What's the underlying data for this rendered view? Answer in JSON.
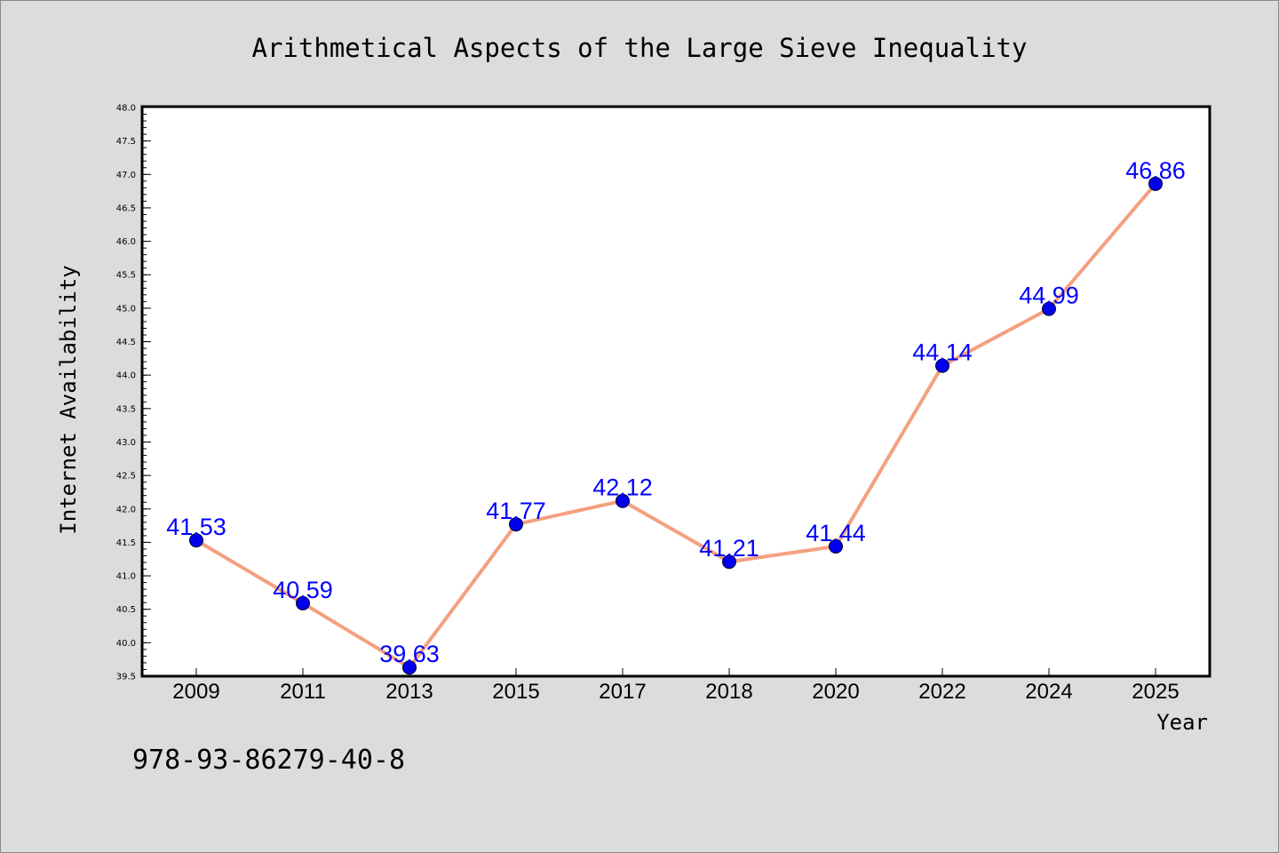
{
  "chart_data": {
    "type": "line",
    "title": "Arithmetical Aspects of the Large Sieve Inequality",
    "xlabel": "Year",
    "ylabel": "Internet Availability",
    "categories": [
      "2009",
      "2011",
      "2013",
      "2015",
      "2017",
      "2018",
      "2020",
      "2022",
      "2024",
      "2025"
    ],
    "series": [
      {
        "values": [
          41.53,
          40.59,
          39.63,
          41.77,
          42.12,
          41.21,
          41.44,
          44.14,
          44.99,
          46.86
        ],
        "labels": [
          "41.53",
          "40.59",
          "39.63",
          "41.77",
          "42.12",
          "41.21",
          "41.44",
          "44.14",
          "44.99",
          "46.86"
        ]
      }
    ],
    "ylim": [
      39.5,
      48.0
    ],
    "yticks": [
      "39.5",
      "40.0",
      "40.5",
      "41.0",
      "41.5",
      "42.0",
      "42.5",
      "43.0",
      "43.5",
      "44.0",
      "44.5",
      "45.0",
      "45.5",
      "46.0",
      "46.5",
      "47.0",
      "47.5",
      "48.0"
    ],
    "grid": false,
    "line_color": "#f4a07f",
    "marker_color": "#0000ee",
    "label_color": "#0000ff",
    "background": "#ffffff",
    "page_background": "#dcdcdc"
  },
  "footer": {
    "isbn": "978-93-86279-40-8"
  }
}
